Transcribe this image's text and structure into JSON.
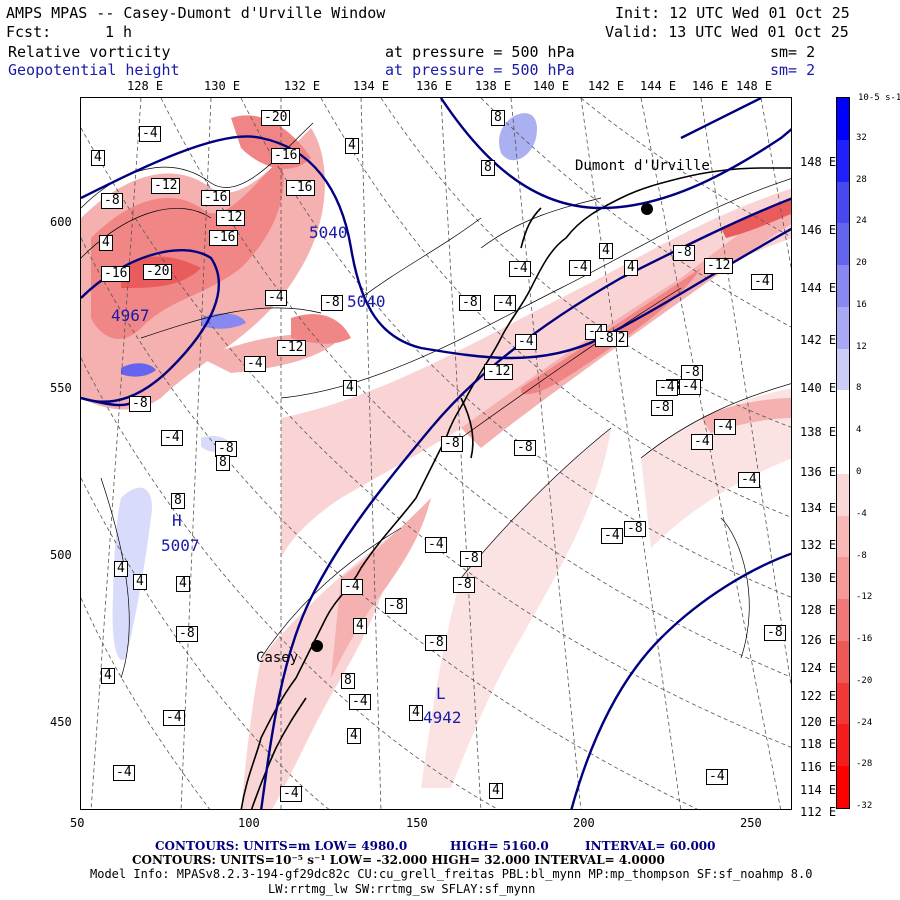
{
  "header": {
    "title": "AMPS MPAS -- Casey-Dumont d'Urville Window",
    "fcst_label": "Fcst:",
    "fcst_value": "1 h",
    "init": "Init: 12 UTC Wed 01 Oct 25",
    "valid": "Valid: 13 UTC Wed 01 Oct 25",
    "field1_name": "Relative vorticity",
    "field1_level": "at pressure =  500 hPa",
    "field1_sm": "sm= 2",
    "field2_name": "Geopotential height",
    "field2_level": "at pressure =  500 hPa",
    "field2_sm": "sm= 2"
  },
  "top_lon_labels": [
    "128 E",
    "130 E",
    "132 E",
    "134 E",
    "136 E",
    "138 E",
    "140 E",
    "142 E",
    "144 E",
    "146 E",
    "148 E"
  ],
  "right_lon_labels": [
    "148 E",
    "146 E",
    "144 E",
    "142 E",
    "140 E",
    "138 E",
    "136 E",
    "134 E",
    "132 E",
    "130 E",
    "128 E",
    "126 E",
    "124 E",
    "122 E",
    "120 E",
    "118 E",
    "116 E",
    "114 E",
    "112 E"
  ],
  "x_ticks": [
    "50",
    "100",
    "150",
    "200",
    "250"
  ],
  "y_ticks": [
    "600",
    "550",
    "500",
    "450"
  ],
  "map": {
    "stations": [
      "Dumont d'Urville",
      "Casey"
    ],
    "highs_lows": [
      {
        "letter": "H",
        "value": "5007"
      },
      {
        "letter": "L",
        "value": "4942"
      },
      {
        "letter": "",
        "value": "4967"
      }
    ],
    "height_labels": [
      "5040",
      "5040"
    ],
    "contour_labels": [
      "-20",
      "-4",
      "4",
      "-16",
      "-12",
      "-16",
      "8",
      "-8",
      "-12",
      "-16",
      "-16",
      "-20",
      "-16",
      "-4",
      "-8",
      "-12",
      "4",
      "-4",
      "-8",
      "4",
      "-4",
      "-8",
      "-4",
      "8",
      "4",
      "-4",
      "-8",
      "4",
      "4",
      "-4",
      "-4",
      "-8",
      "-12",
      "-8",
      "-12",
      "-8",
      "-4",
      "-12",
      "-4",
      "-4",
      "-4",
      "-8",
      "-8",
      "-4",
      "-8",
      "-4",
      "-4",
      "-4",
      "-8",
      "-8",
      "-4",
      "-8",
      "-4",
      "-8",
      "4",
      "-8",
      "4",
      "8",
      "-4",
      "8",
      "8",
      "4",
      "-8",
      "-4",
      "4",
      "4",
      "4",
      "-4",
      "-8",
      "-4",
      "4",
      "4",
      "-4",
      "-8"
    ]
  },
  "colorbar": {
    "unit": "10-5 s-1",
    "labels": [
      "32",
      "28",
      "24",
      "20",
      "16",
      "12",
      "8",
      "4",
      "0",
      "-4",
      "-8",
      "-12",
      "-16",
      "-20",
      "-24",
      "-28",
      "-32"
    ],
    "colors": [
      "#0000ff",
      "#2020ff",
      "#4848f0",
      "#6464ee",
      "#8888f0",
      "#a8a8f4",
      "#ccccf8",
      "#ffffff",
      "#ffffff",
      "#fad8d8",
      "#f8b8b8",
      "#f49898",
      "#f07878",
      "#f05858",
      "#f03838",
      "#f41c1c",
      "#ff0000"
    ]
  },
  "footer": {
    "line1_a": "CONTOURS:  UNITS=m  LOW=  4980.0",
    "line1_b": "HIGH=  5160.0",
    "line1_c": "INTERVAL=   60.000",
    "line2": "CONTOURS:  UNITS=10⁻⁵ s⁻¹   LOW= -32.000       HIGH=  32.000      INTERVAL=   4.0000",
    "line3": "Model Info: MPASv8.2.3-194-gf29dc82c CU:cu_grell_freitas PBL:bl_mynn MP:mp_thompson SF:sf_noahmp 8.0",
    "line4": "LW:rrtmg_lw SW:rrtmg_sw SFLAY:sf_mynn"
  }
}
